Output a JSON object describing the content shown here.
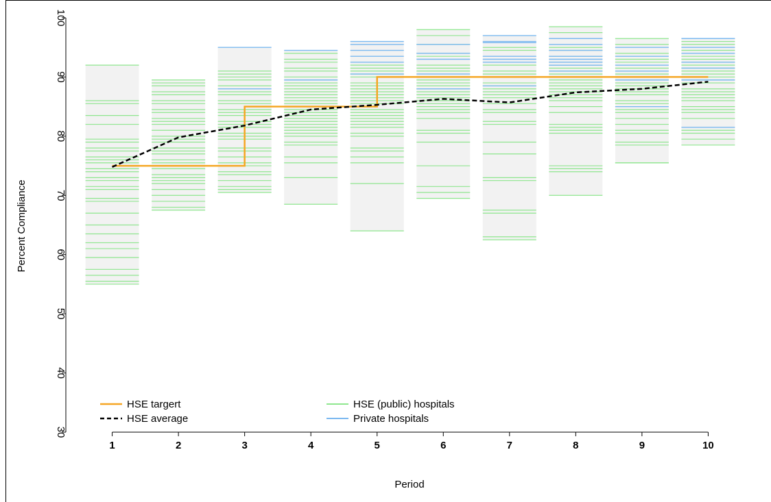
{
  "chart_data": {
    "type": "line",
    "title": "",
    "xlabel": "Period",
    "ylabel": "Percent Compliance",
    "x": [
      1,
      2,
      3,
      4,
      5,
      6,
      7,
      8,
      9,
      10
    ],
    "xlim": [
      0.3,
      10.7
    ],
    "ylim": [
      30,
      100
    ],
    "yticks": [
      30,
      40,
      50,
      60,
      70,
      80,
      90,
      100
    ],
    "grid": false,
    "legend_position": "bottom-left",
    "colors": {
      "target": "#f5a623",
      "average": "#000000",
      "public": "#8ee68e",
      "private": "#7ab8f0",
      "range_box": "#f2f2f2"
    },
    "series": [
      {
        "name": "HSE targert",
        "style": "step",
        "values": [
          75,
          75,
          85,
          85,
          90,
          90,
          90,
          90,
          90,
          90
        ]
      },
      {
        "name": "HSE average",
        "style": "dashed",
        "values": [
          74.8,
          79.8,
          81.8,
          84.5,
          85.3,
          86.3,
          85.7,
          87.4,
          88,
          89.2
        ]
      }
    ],
    "hospital_rates": [
      {
        "period": 1,
        "public": [
          92,
          86,
          85.5,
          83.5,
          82,
          79.5,
          79,
          78,
          77.5,
          76.5,
          76,
          75.5,
          74.5,
          74,
          73,
          72.5,
          71.5,
          71,
          69.5,
          69,
          67,
          65,
          63.5,
          62,
          61,
          59.5,
          57.5,
          56.5,
          55.5,
          55
        ],
        "private": []
      },
      {
        "period": 2,
        "public": [
          89.5,
          89,
          88.5,
          87.5,
          87,
          86,
          85.5,
          84.5,
          84,
          83,
          82.5,
          82,
          81,
          80,
          79.5,
          79,
          78,
          77.5,
          77,
          76,
          75.5,
          74.5,
          73.5,
          73,
          72.5,
          72,
          71,
          70,
          69,
          68,
          67.5
        ],
        "private": []
      },
      {
        "period": 3,
        "public": [
          91,
          90.5,
          90,
          89.5,
          88.5,
          87.5,
          87,
          86,
          85.5,
          84.5,
          84,
          83.5,
          82.5,
          82,
          81.5,
          80.5,
          80,
          79.5,
          78,
          77.5,
          76.5,
          75.5,
          75,
          74,
          73.5,
          72.5,
          71.5,
          71,
          70.5
        ],
        "private": [
          95,
          88
        ]
      },
      {
        "period": 4,
        "public": [
          94,
          93,
          92.5,
          91.5,
          91,
          90,
          89,
          88.5,
          88,
          87.5,
          87,
          86.5,
          86,
          85.5,
          85,
          84.5,
          84,
          83.5,
          83,
          82.5,
          82,
          81.5,
          81,
          80.5,
          80,
          79,
          78.5,
          76.5,
          75.5,
          73,
          68.5
        ],
        "private": [
          94.5,
          89.5
        ]
      },
      {
        "period": 5,
        "public": [
          92,
          91.5,
          91,
          90.5,
          90,
          89,
          88.5,
          88,
          87.5,
          87,
          86.5,
          86,
          85.5,
          84.5,
          84,
          83.5,
          83,
          82.5,
          82,
          81.5,
          80.5,
          80,
          78,
          77.5,
          76.5,
          75.5,
          72,
          64
        ],
        "private": [
          96,
          95.5,
          94.5,
          93.5,
          92.5,
          90.5
        ]
      },
      {
        "period": 6,
        "public": [
          98,
          97,
          95.5,
          94,
          93.5,
          92,
          91.5,
          91,
          90,
          89.5,
          89,
          88.5,
          88,
          87.5,
          87,
          86.5,
          86,
          85.5,
          85,
          84.5,
          84,
          83,
          81,
          80.5,
          79,
          75,
          71.5,
          70.5,
          69.5
        ],
        "private": [
          95.5,
          94,
          93,
          90.5,
          88
        ]
      },
      {
        "period": 7,
        "public": [
          95,
          94.5,
          92,
          91,
          90.5,
          90,
          89,
          88.5,
          88,
          87.5,
          87,
          86.5,
          85.5,
          84.5,
          84,
          82.5,
          82,
          79,
          77,
          73,
          72.5,
          67.5,
          67,
          63,
          62.5
        ],
        "private": [
          97,
          96,
          95.8,
          93.5,
          93,
          92.5,
          88.5
        ]
      },
      {
        "period": 8,
        "public": [
          98.5,
          97.5,
          96.5,
          95,
          94.5,
          93.5,
          92.5,
          92,
          91.5,
          91,
          90.5,
          89.5,
          89,
          88.5,
          88,
          87.5,
          87,
          86.5,
          86,
          85,
          84,
          82,
          81.5,
          81,
          80.5,
          75,
          74.5,
          74,
          70
        ],
        "private": [
          96.5,
          95.5,
          94.5,
          93.5,
          93,
          92.5,
          92,
          91,
          90
        ]
      },
      {
        "period": 9,
        "public": [
          96.5,
          95.5,
          94,
          93,
          92.5,
          91.5,
          90.5,
          89.5,
          89,
          88.5,
          88,
          87.5,
          87,
          86,
          85.5,
          84.5,
          84,
          83,
          82,
          81,
          80.5,
          79,
          78.5,
          75.5,
          75.5
        ],
        "private": [
          95,
          93.5,
          92,
          91,
          89.5,
          85
        ]
      },
      {
        "period": 10,
        "public": [
          96,
          95.5,
          94.5,
          93.5,
          93,
          92.5,
          92,
          91.5,
          91,
          90.5,
          90,
          89,
          88,
          87.5,
          87,
          86.5,
          86,
          85,
          84.5,
          84,
          83,
          81,
          80.5,
          79.5,
          78.5
        ],
        "private": [
          96.5,
          95,
          94,
          92.5,
          91.5,
          89.5,
          81.5
        ]
      }
    ]
  },
  "legend": {
    "items": [
      {
        "label": "HSE targert",
        "kind": "solid",
        "color": "#f5a623"
      },
      {
        "label": "HSE average",
        "kind": "dashed",
        "color": "#000000"
      },
      {
        "label": "HSE (public) hospitals",
        "kind": "solid",
        "color": "#8ee68e"
      },
      {
        "label": "Private hospitals",
        "kind": "solid",
        "color": "#7ab8f0"
      }
    ]
  }
}
